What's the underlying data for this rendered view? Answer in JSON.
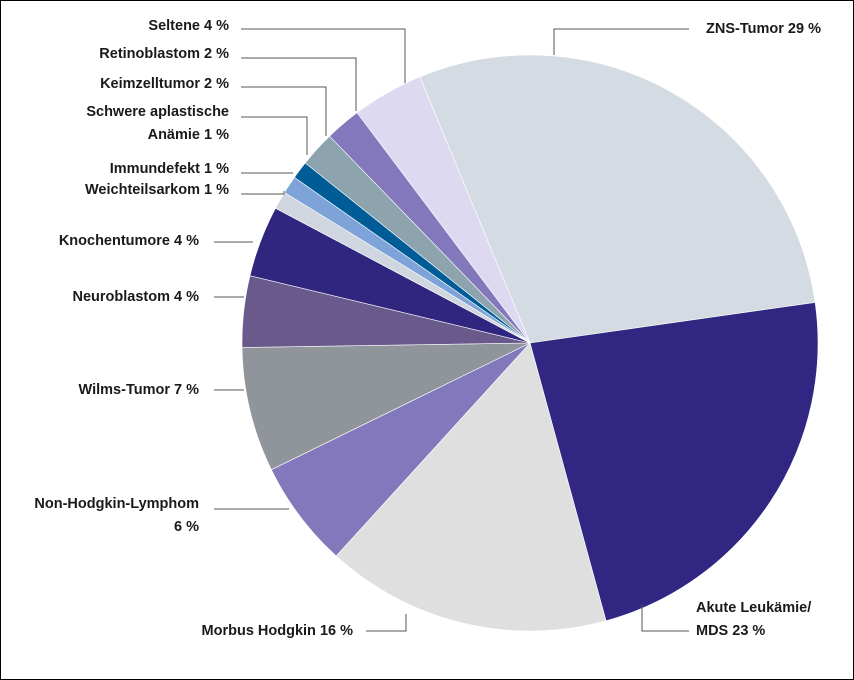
{
  "chart_data": {
    "type": "pie",
    "title": "",
    "unit": "%",
    "slices": [
      {
        "label": "ZNS-Tumor 29 %",
        "value": 29,
        "color": "#d5dbe2"
      },
      {
        "label": "Akute Leukämie/ MDS 23 %",
        "value": 23,
        "color": "#312783"
      },
      {
        "label": "Morbus Hodgkin 16 %",
        "value": 16,
        "color": "#dfdfdf"
      },
      {
        "label": "Non-Hodgkin-Lymphom 6 %",
        "value": 6,
        "color": "#8278bb"
      },
      {
        "label": "Wilms-Tumor 7 %",
        "value": 7,
        "color": "#8f959b"
      },
      {
        "label": "Neuroblastom 4 %",
        "value": 4,
        "color": "#6a5a8c"
      },
      {
        "label": "Knochentumore 4 %",
        "value": 4,
        "color": "#302680"
      },
      {
        "label": "Weichteilsarkom 1 %",
        "value": 1,
        "color": "#d0d6df"
      },
      {
        "label": "Immundefekt 1 %",
        "value": 1,
        "color": "#7ea3d8"
      },
      {
        "label": "Schwere aplastische Anämie 1 %",
        "value": 1,
        "color": "#005c97"
      },
      {
        "label": "Keimzelltumor 2 %",
        "value": 2,
        "color": "#8da3ae"
      },
      {
        "label": "Retinoblastom 2 %",
        "value": 2,
        "color": "#8278bb"
      },
      {
        "label": "Seltene 4 %",
        "value": 4,
        "color": "#ddd9f0"
      }
    ]
  }
}
